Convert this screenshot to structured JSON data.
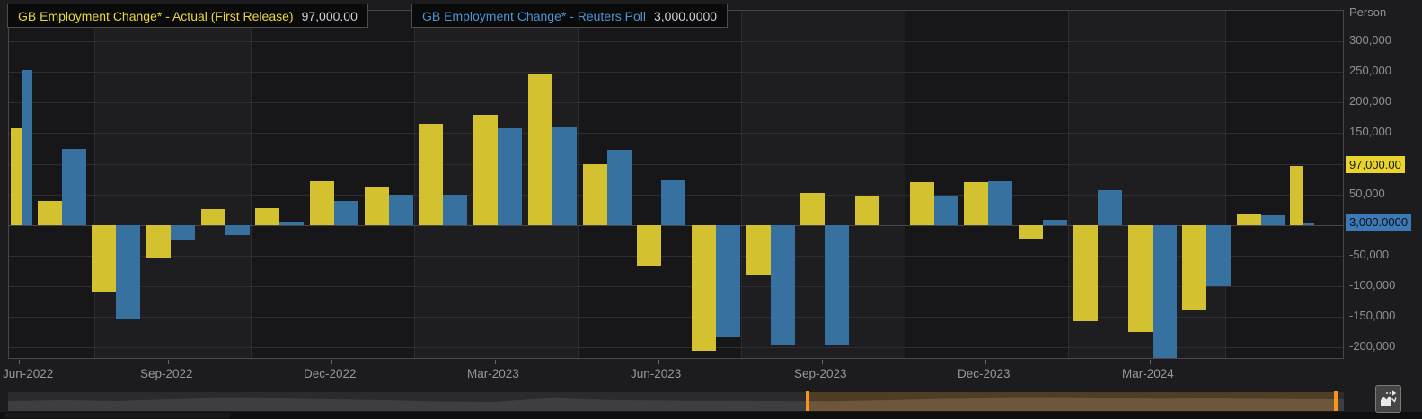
{
  "legend": {
    "series": [
      {
        "label": "GB Employment Change* - Actual (First Release)",
        "value": "97,000.00",
        "text_color": "#e9d63f"
      },
      {
        "label": "GB Employment Change* - Reuters Poll",
        "value": "3,000.0000",
        "text_color": "#4e94d0"
      }
    ]
  },
  "y_axis": {
    "unit": "Person",
    "ticks": [
      {
        "value": 300000,
        "label": "300,000"
      },
      {
        "value": 250000,
        "label": "250,000"
      },
      {
        "value": 200000,
        "label": "200,000"
      },
      {
        "value": 150000,
        "label": "150,000"
      },
      {
        "value": 50000,
        "label": "50,000"
      },
      {
        "value": -50000,
        "label": "-50,000"
      },
      {
        "value": -100000,
        "label": "-100,000"
      },
      {
        "value": -150000,
        "label": "-150,000"
      },
      {
        "value": -200000,
        "label": "-200,000"
      }
    ],
    "badges": [
      {
        "series": "actual",
        "value": 97000,
        "label": "97,000.00",
        "bg": "#e9d42e",
        "text_color": "#1a1a02"
      },
      {
        "series": "poll",
        "value": 3000,
        "label": "3,000.0000",
        "bg": "#3d7ab5",
        "text_color": "#071019"
      }
    ]
  },
  "x_axis": {
    "labels": [
      {
        "label": "Jun-2022",
        "month_index": 0
      },
      {
        "label": "Sep-2022",
        "month_index": 3
      },
      {
        "label": "Dec-2022",
        "month_index": 6
      },
      {
        "label": "Mar-2023",
        "month_index": 9
      },
      {
        "label": "Jun-2023",
        "month_index": 12
      },
      {
        "label": "Sep-2023",
        "month_index": 15
      },
      {
        "label": "Dec-2023",
        "month_index": 18
      },
      {
        "label": "Mar-2024",
        "month_index": 21
      }
    ]
  },
  "chart_data": {
    "type": "bar",
    "title": "GB Employment Change - Actual (First Release) vs Reuters Poll",
    "unit": "Person",
    "ylabel": "Person",
    "ylim": [
      -220000,
      350000
    ],
    "grid": "horizontal every 50,000; vertical at quarter midpoints; zero line emphasized",
    "legend_position": "top-left",
    "x_tick_labels": [
      "Jun-2022",
      "Sep-2022",
      "Dec-2022",
      "Mar-2023",
      "Jun-2023",
      "Sep-2023",
      "Dec-2023",
      "Mar-2024"
    ],
    "categories": [
      "Jun-2022",
      "Jul-2022",
      "Aug-2022",
      "Sep-2022",
      "Oct-2022",
      "Nov-2022",
      "Dec-2022",
      "Jan-2023",
      "Feb-2023",
      "Mar-2023",
      "Apr-2023",
      "May-2023",
      "Jun-2023",
      "Jul-2023",
      "Aug-2023",
      "Sep-2023",
      "Oct-2023",
      "Nov-2023",
      "Dec-2023",
      "Jan-2024",
      "Feb-2024",
      "Mar-2024",
      "Apr-2024",
      "May-2024",
      "Jun-2024"
    ],
    "series": [
      {
        "name": "GB Employment Change* - Actual (First Release)",
        "color": "#d4c130",
        "values": [
          158000,
          40000,
          -110000,
          -54000,
          26000,
          27000,
          72000,
          63000,
          166000,
          180000,
          248000,
          100000,
          -66000,
          -206000,
          -82000,
          53000,
          48000,
          70000,
          70000,
          -22000,
          -157000,
          -175000,
          -140000,
          17000,
          97000
        ]
      },
      {
        "name": "GB Employment Change* - Reuters Poll",
        "color": "#36719f",
        "values": [
          253000,
          125000,
          -153000,
          -25000,
          -17000,
          5000,
          40000,
          50000,
          49000,
          158000,
          160000,
          123000,
          73000,
          -184000,
          -197000,
          -197000,
          0,
          47000,
          72000,
          8000,
          57000,
          -218000,
          -100000,
          16000,
          3000
        ]
      }
    ],
    "latest": {
      "actual": 97000,
      "poll": 3000
    }
  },
  "navigator": {
    "track_color": "#2b2b2d",
    "wave_color": "#3e3e41",
    "selection_color": "#4e3d27",
    "selection_wave_color": "#6d5639",
    "handle_color": "#f7941e"
  },
  "controls": {
    "expand_button_icon": "area-chart-arrow-icon"
  }
}
